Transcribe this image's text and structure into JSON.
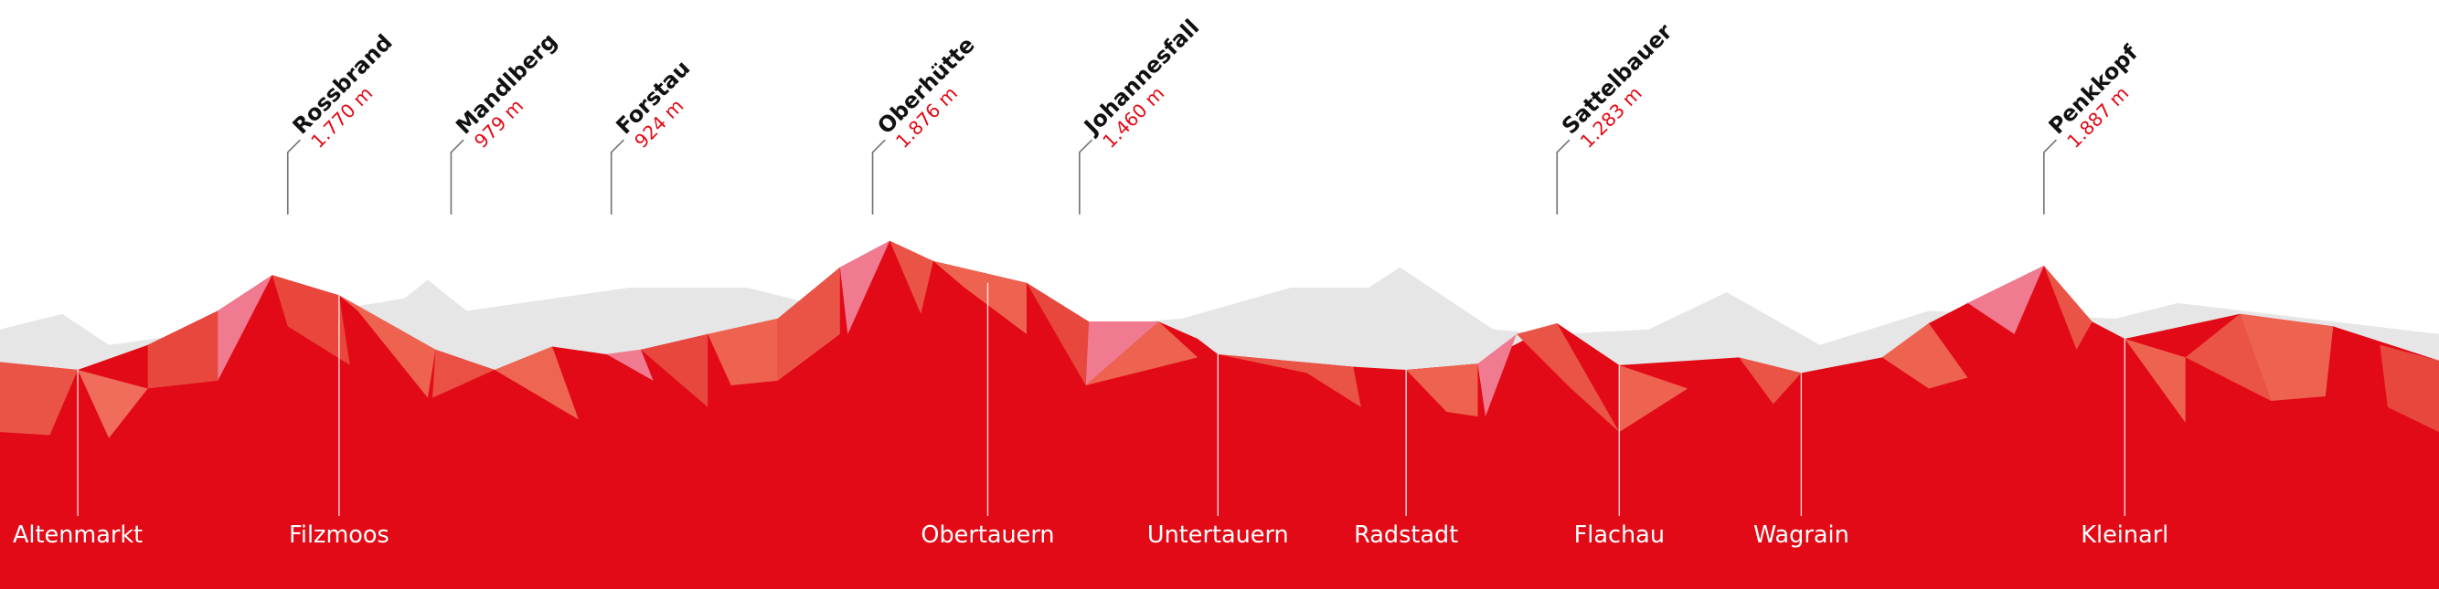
{
  "peaks": [
    {
      "name": "Rossbrand",
      "elevation": "1.770 m"
    },
    {
      "name": "Mandlberg",
      "elevation": "979 m"
    },
    {
      "name": "Forstau",
      "elevation": "924 m"
    },
    {
      "name": "Oberhütte",
      "elevation": "1.876 m"
    },
    {
      "name": "Johannesfall",
      "elevation": "1.460 m"
    },
    {
      "name": "Sattelbauer",
      "elevation": "1.283 m"
    },
    {
      "name": "Penkkopf",
      "elevation": "1.887 m"
    }
  ],
  "towns": [
    "Altenmarkt",
    "Filzmoos",
    "Obertauern",
    "Untertauern",
    "Radstadt",
    "Flachau",
    "Wagrain",
    "Kleinarl"
  ]
}
